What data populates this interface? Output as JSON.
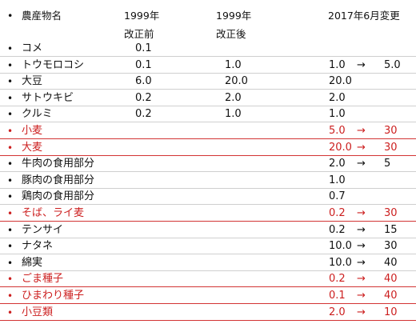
{
  "header": {
    "bullet": "•",
    "name_col": "農産物名",
    "col_a_line1": "1999年",
    "col_a_line2": "改正前",
    "col_b_line1": "1999年",
    "col_b_line2": "改正後",
    "col_c": "2017年6月変更"
  },
  "rows": [
    {
      "bullet": "•",
      "name": "コメ",
      "a": "0.1",
      "b": "",
      "c": "",
      "arrow": "",
      "d": "",
      "highlight": false
    },
    {
      "bullet": "•",
      "name": "トウモロコシ",
      "a": "0.1",
      "b": "1.0",
      "c": "1.0",
      "arrow": "→",
      "d": "5.0",
      "highlight": false
    },
    {
      "bullet": "•",
      "name": "大豆",
      "a": "6.0",
      "b": "20.0",
      "c": "20.0",
      "arrow": "",
      "d": "",
      "highlight": false
    },
    {
      "bullet": "•",
      "name": "サトウキビ",
      "a": "0.2",
      "b": "2.0",
      "c": "2.0",
      "arrow": "",
      "d": "",
      "highlight": false
    },
    {
      "bullet": "•",
      "name": "クルミ",
      "a": "0.2",
      "b": "1.0",
      "c": "1.0",
      "arrow": "",
      "d": "",
      "highlight": false
    },
    {
      "bullet": "•",
      "name": "小麦",
      "a": "",
      "b": "",
      "c": "5.0",
      "arrow": "→",
      "d": "30",
      "highlight": true
    },
    {
      "bullet": "•",
      "name": "大麦",
      "a": "",
      "b": "",
      "c": "20.0",
      "arrow": "→",
      "d": "30",
      "highlight": true
    },
    {
      "bullet": "•",
      "name": "牛肉の食用部分",
      "a": "",
      "b": "",
      "c": "2.0",
      "arrow": "→",
      "d": "5",
      "highlight": false
    },
    {
      "bullet": "•",
      "name": "豚肉の食用部分",
      "a": "",
      "b": "",
      "c": "1.0",
      "arrow": "",
      "d": "",
      "highlight": false
    },
    {
      "bullet": "•",
      "name": "鶏肉の食用部分",
      "a": "",
      "b": "",
      "c": "0.7",
      "arrow": "",
      "d": "",
      "highlight": false
    },
    {
      "bullet": "•",
      "name": "そば、ライ麦",
      "a": "",
      "b": "",
      "c": "0.2",
      "arrow": "→",
      "d": "30",
      "highlight": true
    },
    {
      "bullet": "•",
      "name": "テンサイ",
      "a": "",
      "b": "",
      "c": "0.2",
      "arrow": "→",
      "d": "15",
      "highlight": false
    },
    {
      "bullet": "•",
      "name": "ナタネ",
      "a": "",
      "b": "",
      "c": "10.0",
      "arrow": "→",
      "d": "30",
      "highlight": false
    },
    {
      "bullet": "•",
      "name": "綿実",
      "a": "",
      "b": "",
      "c": "10.0",
      "arrow": "→",
      "d": "40",
      "highlight": false
    },
    {
      "bullet": "•",
      "name": "ごま種子",
      "a": "",
      "b": "",
      "c": "0.2",
      "arrow": "→",
      "d": "40",
      "highlight": true
    },
    {
      "bullet": "•",
      "name": "ひまわり種子",
      "a": "",
      "b": "",
      "c": "0.1",
      "arrow": "→",
      "d": "40",
      "highlight": true
    },
    {
      "bullet": "•",
      "name": "小豆類",
      "a": "",
      "b": "",
      "c": "2.0",
      "arrow": "→",
      "d": "10",
      "highlight": true
    }
  ],
  "colors": {
    "highlight": "#cc1f1f",
    "rule": "#cfcfcf",
    "highlight_rule": "#d23434"
  }
}
